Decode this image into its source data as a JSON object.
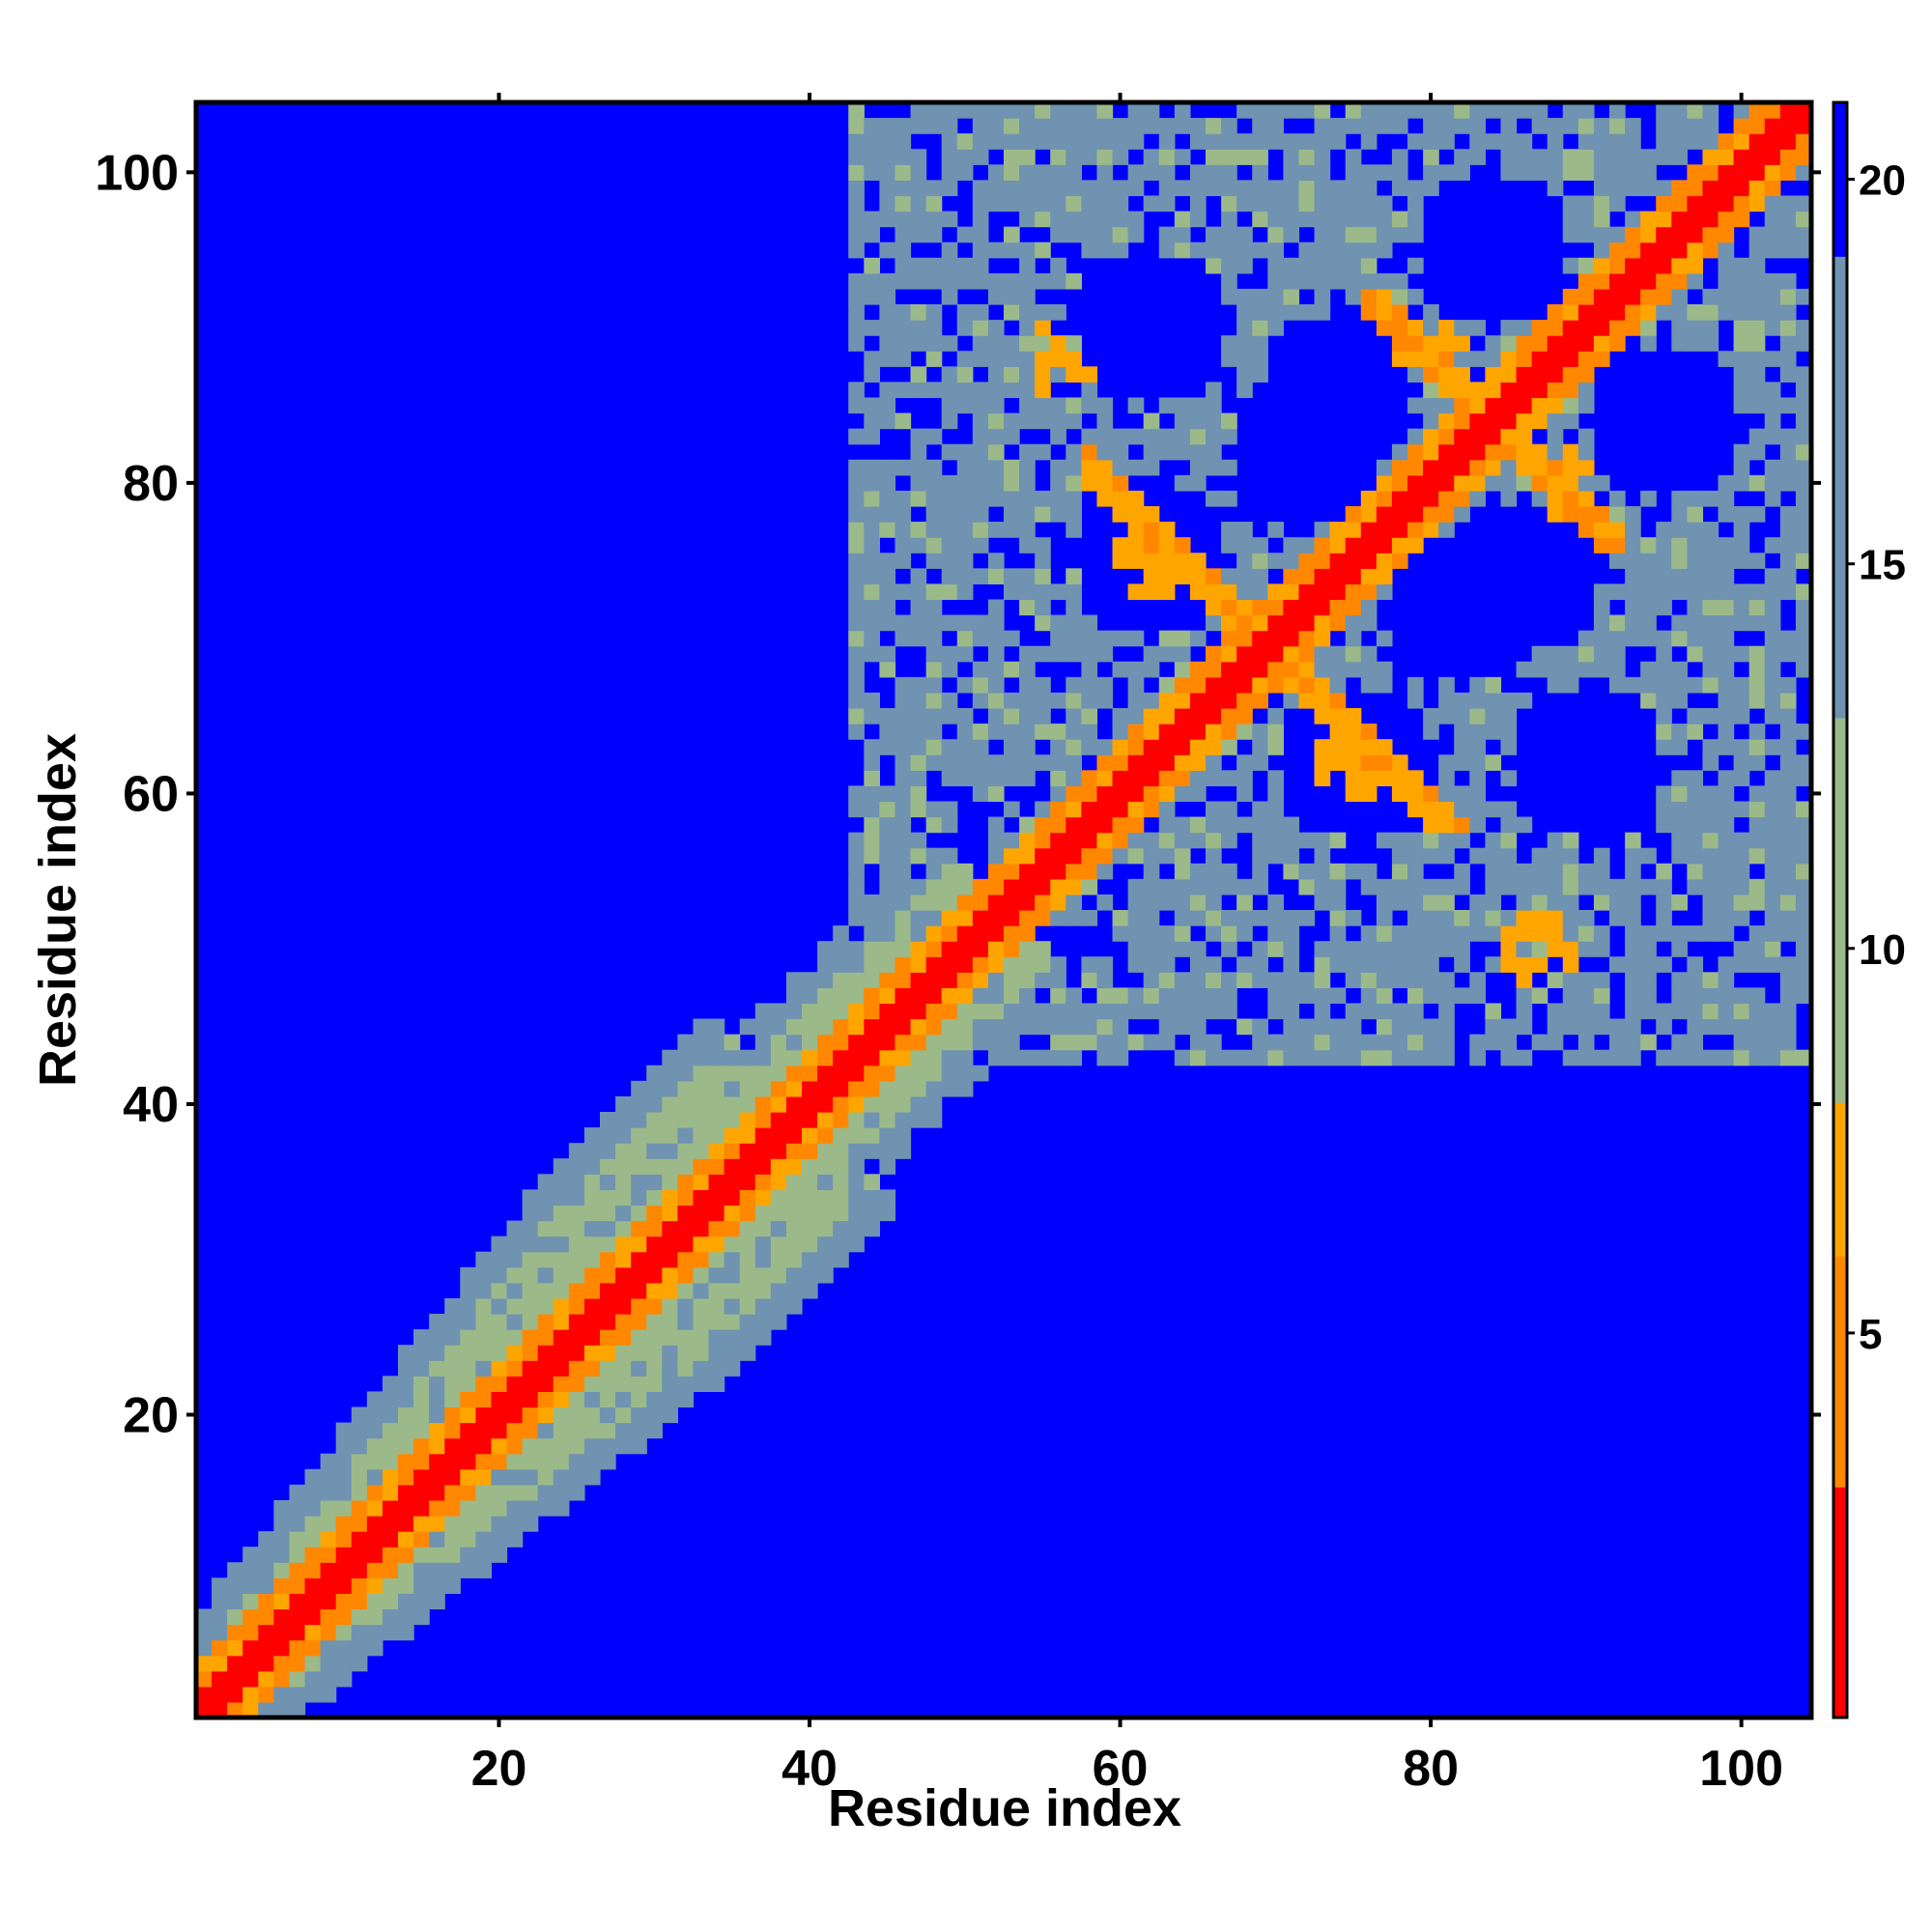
{
  "chart_data": {
    "type": "heatmap",
    "title": "",
    "xlabel": "Residue index",
    "ylabel": "Residue index",
    "xlim": [
      1,
      104
    ],
    "ylim": [
      1,
      104
    ],
    "x_ticks": [
      "20",
      "40",
      "60",
      "80",
      "100"
    ],
    "y_ticks": [
      "20",
      "40",
      "60",
      "80",
      "100"
    ],
    "colorbar_ticks": [
      "5",
      "10",
      "15",
      "20"
    ],
    "colorbar_range": [
      0,
      21
    ],
    "grid": false,
    "colors": {
      "very_close": "#ff0000",
      "close": "#ff8800",
      "contact_edge": "#ffa500",
      "medium": "#9cb98a",
      "medium_far": "#6f93b0",
      "far": "#0000ff"
    },
    "structure": {
      "n_residues": 104,
      "diagonal_value": 1.5,
      "helix_band_1": [
        1,
        38
      ],
      "helix_band_2": [
        40,
        58
      ],
      "domain_region": [
        52,
        104
      ],
      "clusters": [
        {
          "x": 62,
          "y": 75,
          "value": 6
        },
        {
          "x": 75,
          "y": 62,
          "value": 6
        },
        {
          "x": 80,
          "y": 88,
          "value": 6
        },
        {
          "x": 88,
          "y": 80,
          "value": 6
        },
        {
          "x": 56,
          "y": 88,
          "value": 6
        },
        {
          "x": 87,
          "y": 50,
          "value": 6
        }
      ]
    }
  }
}
